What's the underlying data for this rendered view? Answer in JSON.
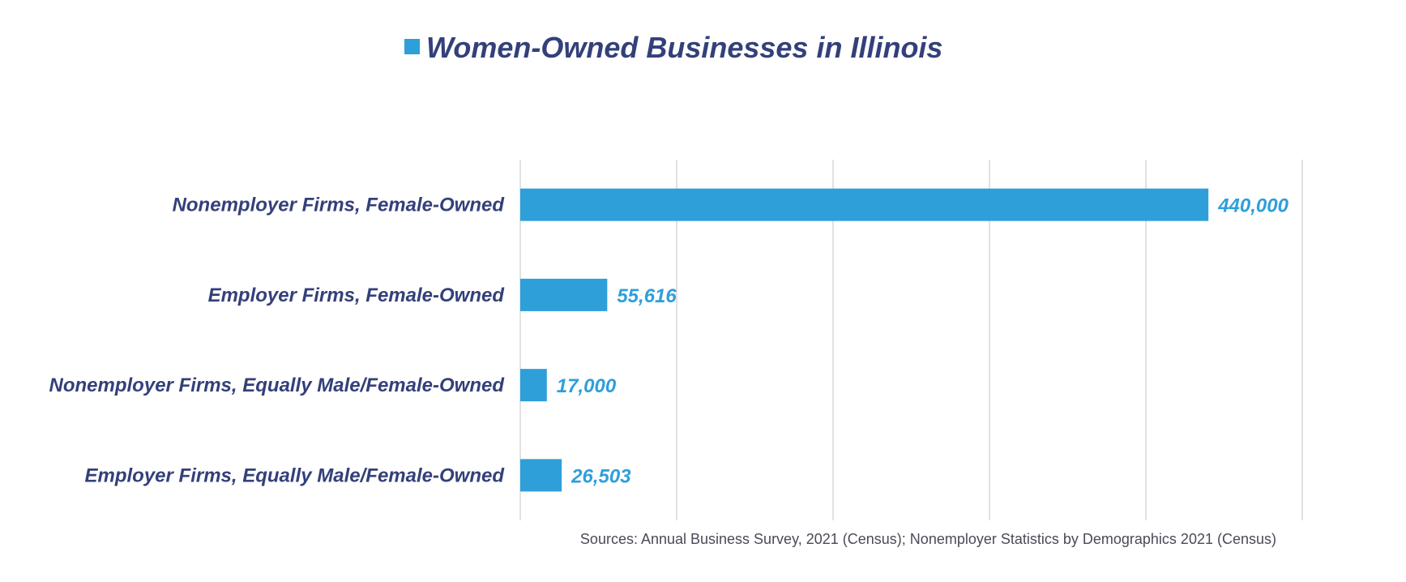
{
  "colors": {
    "bar": "#2E9FD9",
    "title": "#33407A",
    "category_label": "#33407A",
    "value_label": "#2E9FD9",
    "gridline": "#D9D9D9",
    "source": "#4A4A5A"
  },
  "chart_data": {
    "type": "bar",
    "orientation": "horizontal",
    "title": "Women-Owned Businesses in Illinois",
    "categories": [
      "Nonemployer Firms, Female-Owned",
      "Employer Firms, Female-Owned",
      "Nonemployer Firms, Equally Male/Female-Owned",
      "Employer Firms, Equally Male/Female-Owned"
    ],
    "series": [
      {
        "name": "Women-Owned Businesses in Illinois",
        "values": [
          440000,
          55616,
          17000,
          26503
        ]
      }
    ],
    "value_labels": [
      "440,000",
      "55,616",
      "17,000",
      "26,503"
    ],
    "xlim": [
      0,
      500000
    ],
    "gridlines": [
      0,
      100000,
      200000,
      300000,
      400000,
      500000
    ],
    "grid": true,
    "x_tick_labels_shown": false,
    "legend": "top",
    "source": "Sources: Annual Business Survey, 2021 (Census); Nonemployer Statistics by Demographics 2021 (Census)"
  }
}
